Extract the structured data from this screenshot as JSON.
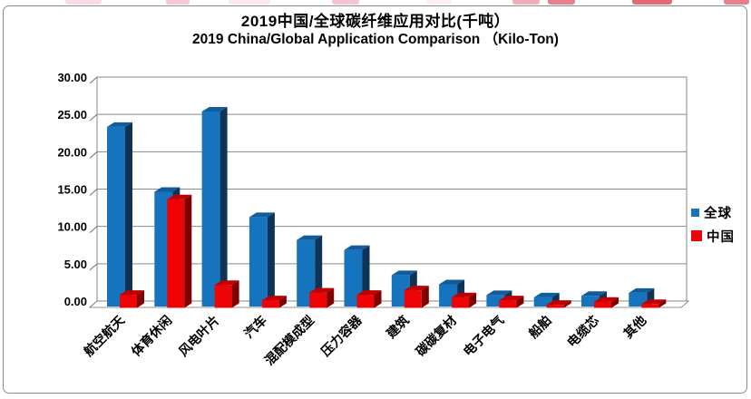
{
  "chart_data": {
    "type": "bar",
    "style": "3d-clustered-column",
    "title": "2019中国/全球碳纤维应用对比(千吨）",
    "subtitle": "2019 China/Global Application Comparison （Kilo-Ton)",
    "categories": [
      "航空航天",
      "体育休闲",
      "风电叶片",
      "汽车",
      "混配模成型",
      "压力容器",
      "建筑",
      "碳碳复材",
      "电子电气",
      "船舶",
      "电缆芯",
      "其他"
    ],
    "series": [
      {
        "key": "global",
        "name": "全球",
        "color": "#1673BE",
        "top_color": "#115C9C",
        "side_color": "#0F3355",
        "values": [
          23.5,
          15.0,
          25.5,
          11.7,
          8.7,
          7.4,
          4.1,
          2.9,
          1.5,
          1.2,
          1.4,
          1.8
        ]
      },
      {
        "key": "china",
        "name": "中国",
        "color": "#EE0404",
        "top_color": "#C00000",
        "side_color": "#7F0000",
        "values": [
          1.7,
          14.2,
          3.0,
          1.0,
          2.0,
          1.7,
          2.3,
          1.4,
          1.0,
          0.4,
          0.8,
          0.5
        ]
      }
    ],
    "ylim": [
      0,
      30
    ],
    "ytick_step": 5,
    "yticks": [
      "0.00",
      "5.00",
      "10.00",
      "15.00",
      "20.00",
      "25.00",
      "30.00"
    ],
    "grid": true,
    "legend_position": "right",
    "gridline_color": "#8a8a8a",
    "axis_color": "#707070",
    "text_color": "#000000"
  }
}
